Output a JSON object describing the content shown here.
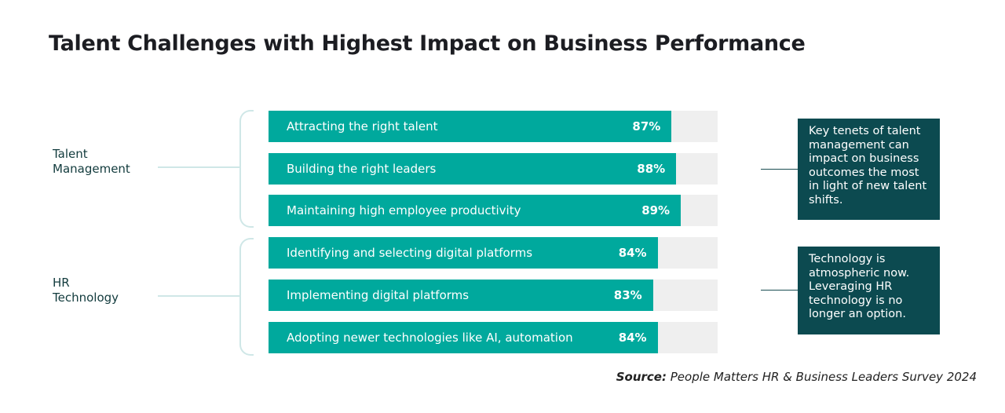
{
  "title": "Talent Challenges with Highest Impact on Business Performance",
  "groups": [
    {
      "label": "Talent\nManagement"
    },
    {
      "label": "HR\nTechnology"
    }
  ],
  "notes": [
    "Key tenets of talent management can impact on business outcomes the most in light of new talent shifts.",
    "Technology is atmospheric now. Leveraging HR technology is no longer an option."
  ],
  "source": {
    "prefix": "Source:",
    "text": " People Matters HR & Business Leaders Survey 2024"
  },
  "colors": {
    "bar": "#00a99d",
    "track": "#efefef",
    "note_box": "#0c4a50",
    "connector": "#cfe7e7"
  },
  "chart_data": {
    "type": "bar",
    "orientation": "horizontal",
    "title": "Talent Challenges with Highest Impact on Business Performance",
    "categories": [
      "Attracting the right talent",
      "Building the right leaders",
      "Maintaining high employee productivity",
      "Identifying and selecting digital platforms",
      "Implementing digital platforms",
      "Adopting newer technologies like AI, automation"
    ],
    "values": [
      87,
      88,
      89,
      84,
      83,
      84
    ],
    "value_labels": [
      "87%",
      "88%",
      "89%",
      "84%",
      "83%",
      "84%"
    ],
    "category_groups": [
      "Talent Management",
      "Talent Management",
      "Talent Management",
      "HR Technology",
      "HR Technology",
      "HR Technology"
    ],
    "xlim": [
      0,
      100
    ],
    "grid": false,
    "legend": "none"
  }
}
